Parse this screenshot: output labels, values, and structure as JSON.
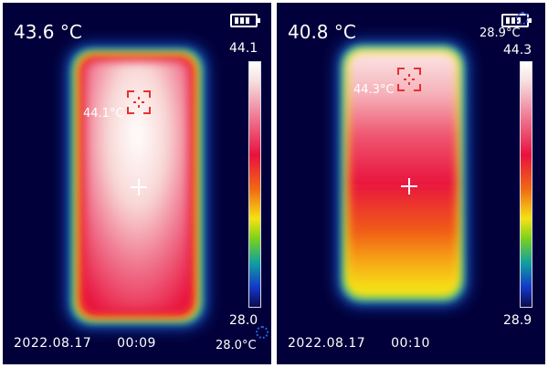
{
  "panels": [
    {
      "center_temp": "43.6 °C",
      "scale_max": "44.1",
      "scale_min": "28.0",
      "max_spot_label": "44.1°C",
      "min_spot_label": "28.0°C",
      "date": "2022.08.17",
      "time": "00:09"
    },
    {
      "center_temp": "40.8 °C",
      "scale_max": "44.3",
      "scale_min": "28.9",
      "max_spot_label": "44.3°C",
      "min_spot_label": "28.9°C",
      "date": "2022.08.17",
      "time": "00:10"
    }
  ],
  "colors": {
    "background": "#02003a",
    "hot": "#ffffff",
    "warm": "#e8113e",
    "mid": "#f5e214",
    "cool": "#1438c8",
    "marker": "#e83030"
  },
  "icons": [
    "battery-icon",
    "center-crosshair-icon",
    "max-spot-marker-icon"
  ]
}
